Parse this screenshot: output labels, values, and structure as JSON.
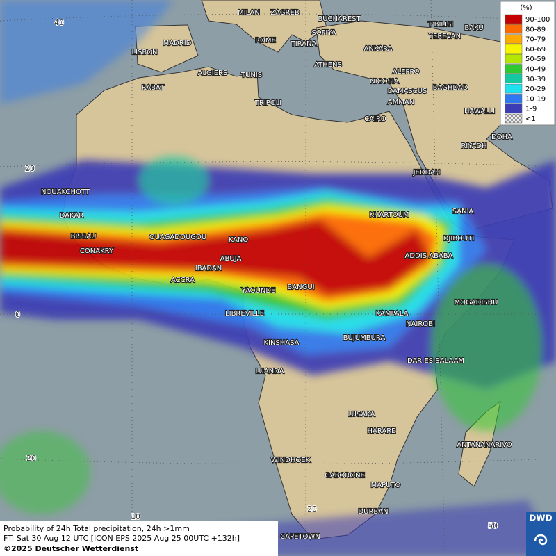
{
  "map": {
    "legend": {
      "title": "(%)",
      "items": [
        {
          "label": "90-100",
          "color": "#c40000"
        },
        {
          "label": "80-89",
          "color": "#ff6a00"
        },
        {
          "label": "70-79",
          "color": "#ffaa00"
        },
        {
          "label": "60-69",
          "color": "#f5f500"
        },
        {
          "label": "50-59",
          "color": "#b4e600"
        },
        {
          "label": "40-49",
          "color": "#32c832"
        },
        {
          "label": "30-39",
          "color": "#14c8a0"
        },
        {
          "label": "20-29",
          "color": "#1ee1f0"
        },
        {
          "label": "10-19",
          "color": "#2e78f0"
        },
        {
          "label": "1-9",
          "color": "#3c3cb4"
        },
        {
          "label": "<1",
          "color": "#bbbbbb"
        }
      ]
    },
    "cities": [
      "MILAN",
      "ZAGREB",
      "BUCHAREST",
      "SOFIYA",
      "T'BILISI",
      "BAKU",
      "YEREVAN",
      "MADRID",
      "LISBON",
      "ROME",
      "TIRANA",
      "ANKARA",
      "ATHENS",
      "ALGIERS",
      "TUNIS",
      "ALEPPO",
      "NICOSIA",
      "RABAT",
      "DAMASCUS",
      "BAGHDAD",
      "AMMAN",
      "TRIPOLI",
      "HAWALLI",
      "CAIRO",
      "DOHA",
      "RIYADH",
      "JEDDAH",
      "NOUAKCHOTT",
      "SAN'A",
      "KHARTOUM",
      "DAKAR",
      "BISSAU",
      "DJIBOUTI",
      "OUAGADOUGOU",
      "KANO",
      "CONAKRY",
      "ABUJA",
      "ADDIS ABABA",
      "IBADAN",
      "ACCRA",
      "BANGUI",
      "YAOUNDE",
      "MOGADISHU",
      "LIBREVILLE",
      "KAMPALA",
      "NAIROBI",
      "BUJUMBURA",
      "KINSHASA",
      "DAR ES SALAAM",
      "LUANDA",
      "LUSAKA",
      "HARARE",
      "ANTANANARIVO",
      "WINDHOEK",
      "GABORONE",
      "MAPUTO",
      "DURBAN",
      "CAPETOWN"
    ],
    "grid_labels": [
      "40",
      "20",
      "0",
      "20",
      "10",
      "20",
      "50"
    ],
    "footer": {
      "line1": "Probability of 24h Total precipitation, 24h >1mm",
      "line2": "FT: Sat 30 Aug 12 UTC [ICON EPS 2025 Aug 25 00UTC +132h]",
      "line3": "©2025 Deutscher Wetterdienst"
    },
    "logo": "DWD"
  }
}
